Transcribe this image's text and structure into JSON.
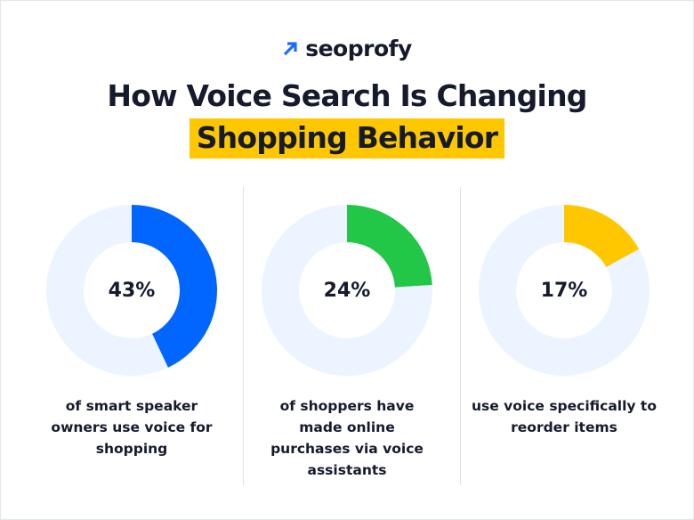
{
  "brand": {
    "name": "seoprofy",
    "icon": "arrow-up-right-icon",
    "accent": "#1a6dff"
  },
  "title": {
    "line1": "How Voice Search Is Changing",
    "line2": "Shopping Behavior",
    "highlight_color": "#ffc700"
  },
  "chart_data": [
    {
      "type": "pie",
      "variant": "donut",
      "values": [
        43,
        57
      ],
      "label": "43%",
      "caption": "of smart speaker owners use voice for shopping",
      "color": "#0066ff",
      "track_color": "#ebf4ff"
    },
    {
      "type": "pie",
      "variant": "donut",
      "values": [
        24,
        76
      ],
      "label": "24%",
      "caption": "of shoppers have made online purchases via voice assistants",
      "color": "#22c747",
      "track_color": "#ebf4ff"
    },
    {
      "type": "pie",
      "variant": "donut",
      "values": [
        17,
        83
      ],
      "label": "17%",
      "caption": "use voice specifically to reorder items",
      "color": "#ffc700",
      "track_color": "#ebf4ff"
    }
  ]
}
